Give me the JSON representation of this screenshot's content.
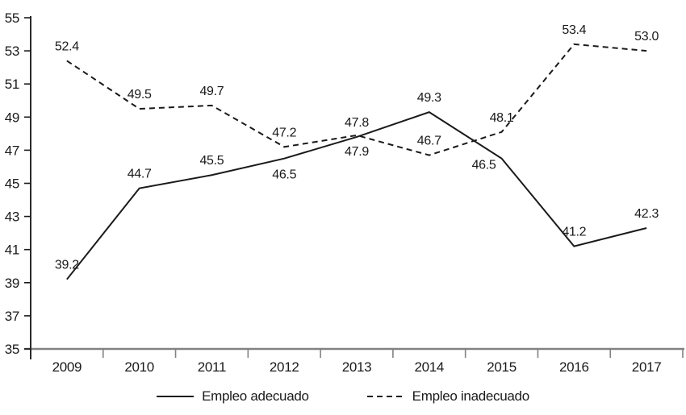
{
  "chart_data": {
    "type": "line",
    "title": "",
    "xlabel": "",
    "ylabel": "",
    "categories": [
      "2009",
      "2010",
      "2011",
      "2012",
      "2013",
      "2014",
      "2015",
      "2016",
      "2017"
    ],
    "series": [
      {
        "name": "Empleo adecuado",
        "line_style": "solid",
        "values": [
          39.2,
          44.7,
          45.5,
          46.5,
          47.8,
          49.3,
          46.5,
          41.2,
          42.3
        ],
        "labels": [
          "39.2",
          "44.7",
          "45.5",
          "46.5",
          "47.8",
          "49.3",
          "46.5",
          "41.2",
          "42.3"
        ],
        "label_placements": [
          "above",
          "above",
          "above",
          "below",
          "above",
          "above",
          "below-left",
          "above",
          "above"
        ]
      },
      {
        "name": "Empleo inadecuado",
        "line_style": "dashed",
        "values": [
          52.4,
          49.5,
          49.7,
          47.2,
          47.9,
          46.7,
          48.1,
          53.4,
          53.0
        ],
        "labels": [
          "52.4",
          "49.5",
          "49.7",
          "47.2",
          "47.9",
          "46.7",
          "48.1",
          "53.4",
          "53.0"
        ],
        "label_placements": [
          "above",
          "above",
          "above",
          "above",
          "below",
          "above",
          "above",
          "above",
          "above"
        ]
      }
    ],
    "ylim": [
      35,
      55
    ],
    "yticks": [
      "55",
      "53",
      "51",
      "49",
      "47",
      "45",
      "43",
      "41",
      "39",
      "37",
      "35"
    ],
    "grid": false,
    "legend_position": "bottom",
    "colors": {
      "series": "#1a1a1a",
      "x_axis": "#828282",
      "y_axis": "#2a2a2a",
      "text": "#1a1a1a",
      "background": "#ffffff"
    }
  }
}
